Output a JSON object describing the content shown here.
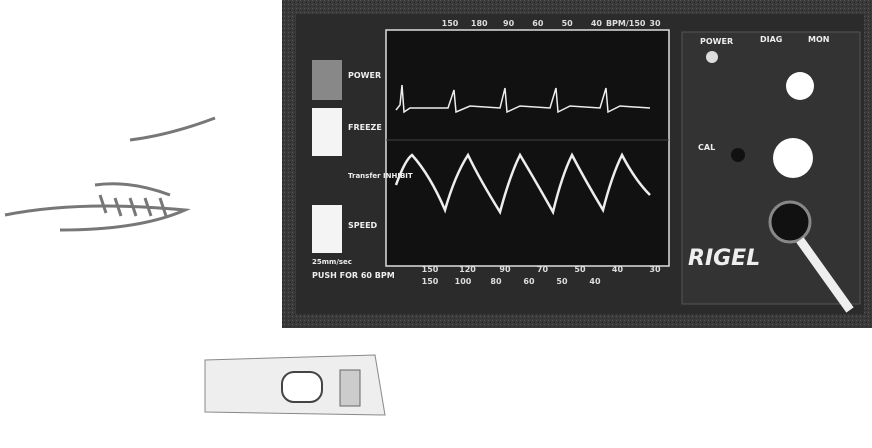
{
  "left_buttons": [
    "POWER",
    "FREEZE",
    "Transfer INHIBIT",
    "SPEED"
  ],
  "speed_note": "25mm/sec",
  "push_label": "PUSH FOR 60 BPM",
  "top_scale": [
    "150",
    "180",
    "90",
    "60",
    "50",
    "40",
    "BPM/150",
    "30"
  ],
  "bottom_scale": [
    "150",
    "120",
    "90",
    "70",
    "50",
    "40",
    "30"
  ],
  "bottom_scale_2": [
    "150",
    "100",
    "80",
    "60",
    "50",
    "40"
  ],
  "right_panel": {
    "power": "POWER",
    "diag": "DIAG",
    "mon": "MON",
    "cal": "CAL",
    "brand": "RIGEL"
  }
}
